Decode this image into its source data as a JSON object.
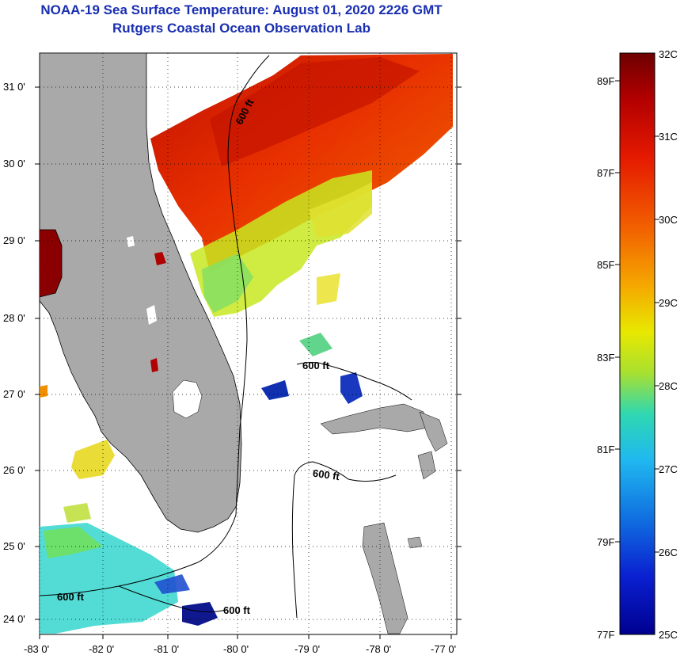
{
  "title": {
    "line1": "NOAA-19 Sea Surface Temperature:  August 01, 2020 2226 GMT",
    "line2": "Rutgers Coastal Ocean Observation Lab"
  },
  "map": {
    "lat_labels": [
      "31 0'",
      "30 0'",
      "29 0'",
      "28 0'",
      "27 0'",
      "26 0'",
      "25 0'",
      "24 0'"
    ],
    "lon_labels": [
      "-83 0'",
      "-82 0'",
      "-81 0'",
      "-80 0'",
      "-79 0'",
      "-78 0'",
      "-77 0'"
    ],
    "contour_label": "600 ft",
    "colors": {
      "land": "#a9a9a9",
      "frame": "#000000"
    }
  },
  "colorbar": {
    "celsius": [
      "32C",
      "31C",
      "30C",
      "29C",
      "28C",
      "27C",
      "26C",
      "25C"
    ],
    "fahrenheit": [
      "89F",
      "87F",
      "85F",
      "83F",
      "81F",
      "79F",
      "77F"
    ],
    "gradient": [
      "#6e0000",
      "#b30000",
      "#e51a00",
      "#f05a00",
      "#f5a800",
      "#e8e800",
      "#a8e030",
      "#30d8b0",
      "#20b8f0",
      "#1070e0",
      "#0a20d0",
      "#000090"
    ]
  }
}
